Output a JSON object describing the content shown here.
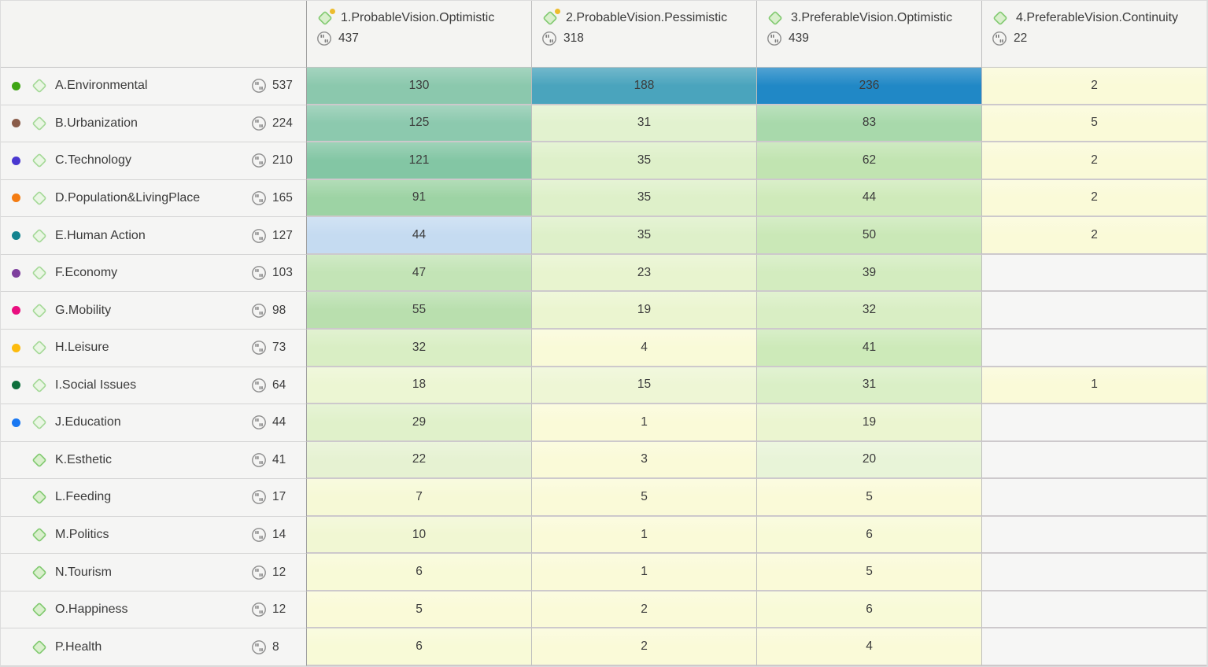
{
  "matrix": {
    "columns": [
      {
        "label": "1.ProbableVision.Optimistic",
        "count": "437",
        "has_yellow_dot": true
      },
      {
        "label": "2.ProbableVision.Pessimistic",
        "count": "318",
        "has_yellow_dot": true
      },
      {
        "label": "3.PreferableVision.Optimistic",
        "count": "439",
        "has_yellow_dot": false
      },
      {
        "label": "4.PreferableVision.Continuity",
        "count": "22",
        "has_yellow_dot": false
      }
    ],
    "rows": [
      {
        "label": "A.Environmental",
        "count": "537",
        "dot_color": "#3ea513",
        "diamond": "light",
        "cells": [
          {
            "value": "130",
            "bg": "#8bc8ad"
          },
          {
            "value": "188",
            "bg": "#4aa4bd"
          },
          {
            "value": "236",
            "bg": "#2088c6"
          },
          {
            "value": "2",
            "bg": "#fafad8"
          }
        ]
      },
      {
        "label": "B.Urbanization",
        "count": "224",
        "dot_color": "#8a5c49",
        "diamond": "light",
        "cells": [
          {
            "value": "125",
            "bg": "#8cc9ae"
          },
          {
            "value": "31",
            "bg": "#e2f2cf"
          },
          {
            "value": "83",
            "bg": "#a8d9ab"
          },
          {
            "value": "5",
            "bg": "#fafad8"
          }
        ]
      },
      {
        "label": "C.Technology",
        "count": "210",
        "dot_color": "#4a38d0",
        "diamond": "light",
        "cells": [
          {
            "value": "121",
            "bg": "#83c6a4"
          },
          {
            "value": "35",
            "bg": "#def0c9"
          },
          {
            "value": "62",
            "bg": "#c1e4b1"
          },
          {
            "value": "2",
            "bg": "#fafad8"
          }
        ]
      },
      {
        "label": "D.Population&LivingPlace",
        "count": "165",
        "dot_color": "#f47c12",
        "diamond": "light",
        "cells": [
          {
            "value": "91",
            "bg": "#9dd3a4"
          },
          {
            "value": "35",
            "bg": "#def0c9"
          },
          {
            "value": "44",
            "bg": "#cfeaba"
          },
          {
            "value": "2",
            "bg": "#fafad8"
          }
        ]
      },
      {
        "label": "E.Human Action",
        "count": "127",
        "dot_color": "#13838f",
        "diamond": "light",
        "cells": [
          {
            "value": "44",
            "bg": "#c5dbf1"
          },
          {
            "value": "35",
            "bg": "#def0c9"
          },
          {
            "value": "50",
            "bg": "#cae8b7"
          },
          {
            "value": "2",
            "bg": "#fafad8"
          }
        ]
      },
      {
        "label": "F.Economy",
        "count": "103",
        "dot_color": "#7e3f9d",
        "diamond": "light",
        "cells": [
          {
            "value": "47",
            "bg": "#c3e4b6"
          },
          {
            "value": "23",
            "bg": "#e8f4cf"
          },
          {
            "value": "39",
            "bg": "#d3ecbf"
          },
          {
            "value": "",
            "bg": "#f6f6f5"
          }
        ]
      },
      {
        "label": "G.Mobility",
        "count": "98",
        "dot_color": "#e90e7f",
        "diamond": "light",
        "cells": [
          {
            "value": "55",
            "bg": "#b9dfae"
          },
          {
            "value": "19",
            "bg": "#ebf5d0"
          },
          {
            "value": "32",
            "bg": "#d9eec4"
          },
          {
            "value": "",
            "bg": "#f6f6f5"
          }
        ]
      },
      {
        "label": "H.Leisure",
        "count": "73",
        "dot_color": "#fcbb0d",
        "diamond": "light",
        "cells": [
          {
            "value": "32",
            "bg": "#d9eec4"
          },
          {
            "value": "4",
            "bg": "#f9fad8"
          },
          {
            "value": "41",
            "bg": "#cdeab9"
          },
          {
            "value": "",
            "bg": "#f6f6f5"
          }
        ]
      },
      {
        "label": "I.Social Issues",
        "count": "64",
        "dot_color": "#0e6f3c",
        "diamond": "light",
        "cells": [
          {
            "value": "18",
            "bg": "#ecf6d3"
          },
          {
            "value": "15",
            "bg": "#eef6d5"
          },
          {
            "value": "31",
            "bg": "#daefc6"
          },
          {
            "value": "1",
            "bg": "#fafad8"
          }
        ]
      },
      {
        "label": "J.Education",
        "count": "44",
        "dot_color": "#1978f2",
        "diamond": "light",
        "cells": [
          {
            "value": "29",
            "bg": "#e0f1ca"
          },
          {
            "value": "1",
            "bg": "#fafad8"
          },
          {
            "value": "19",
            "bg": "#ebf5d0"
          },
          {
            "value": "",
            "bg": "#f6f6f5"
          }
        ]
      },
      {
        "label": "K.Esthetic",
        "count": "41",
        "dot_color": null,
        "diamond": "strong",
        "cells": [
          {
            "value": "22",
            "bg": "#e6f2d2"
          },
          {
            "value": "3",
            "bg": "#fafad8"
          },
          {
            "value": "20",
            "bg": "#e8f4d8"
          },
          {
            "value": "",
            "bg": "#f6f6f5"
          }
        ]
      },
      {
        "label": "L.Feeding",
        "count": "17",
        "dot_color": null,
        "diamond": "strong",
        "cells": [
          {
            "value": "7",
            "bg": "#f6f9d6"
          },
          {
            "value": "5",
            "bg": "#fafad8"
          },
          {
            "value": "5",
            "bg": "#fafad8"
          },
          {
            "value": "",
            "bg": "#f6f6f5"
          }
        ]
      },
      {
        "label": "M.Politics",
        "count": "14",
        "dot_color": null,
        "diamond": "strong",
        "cells": [
          {
            "value": "10",
            "bg": "#f1f7d3"
          },
          {
            "value": "1",
            "bg": "#fafad8"
          },
          {
            "value": "6",
            "bg": "#f8fad7"
          },
          {
            "value": "",
            "bg": "#f6f6f5"
          }
        ]
      },
      {
        "label": "N.Tourism",
        "count": "12",
        "dot_color": null,
        "diamond": "strong",
        "cells": [
          {
            "value": "6",
            "bg": "#f8fad7"
          },
          {
            "value": "1",
            "bg": "#fafad8"
          },
          {
            "value": "5",
            "bg": "#fafad8"
          },
          {
            "value": "",
            "bg": "#f6f6f5"
          }
        ]
      },
      {
        "label": "O.Happiness",
        "count": "12",
        "dot_color": null,
        "diamond": "strong",
        "cells": [
          {
            "value": "5",
            "bg": "#fafad8"
          },
          {
            "value": "2",
            "bg": "#fafad8"
          },
          {
            "value": "6",
            "bg": "#f8fad7"
          },
          {
            "value": "",
            "bg": "#f6f6f5"
          }
        ]
      },
      {
        "label": "P.Health",
        "count": "8",
        "dot_color": null,
        "diamond": "strong",
        "cells": [
          {
            "value": "6",
            "bg": "#f8fad7"
          },
          {
            "value": "2",
            "bg": "#fafad8"
          },
          {
            "value": "4",
            "bg": "#fafad8"
          },
          {
            "value": "",
            "bg": "#f6f6f5"
          }
        ]
      }
    ],
    "icons": {
      "code_icon": "diamond",
      "segments_icon": "quote-circle",
      "diamond_light": {
        "fill": "#eaf6e4",
        "stroke": "#a5d998"
      },
      "diamond_strong": {
        "fill": "#d9efcc",
        "stroke": "#82ca71"
      },
      "yellow_dot_color": "#ecbc2d",
      "quote_circle_stroke": "#8e8e8e",
      "quote_mark_color": "#7c7c7c"
    }
  }
}
